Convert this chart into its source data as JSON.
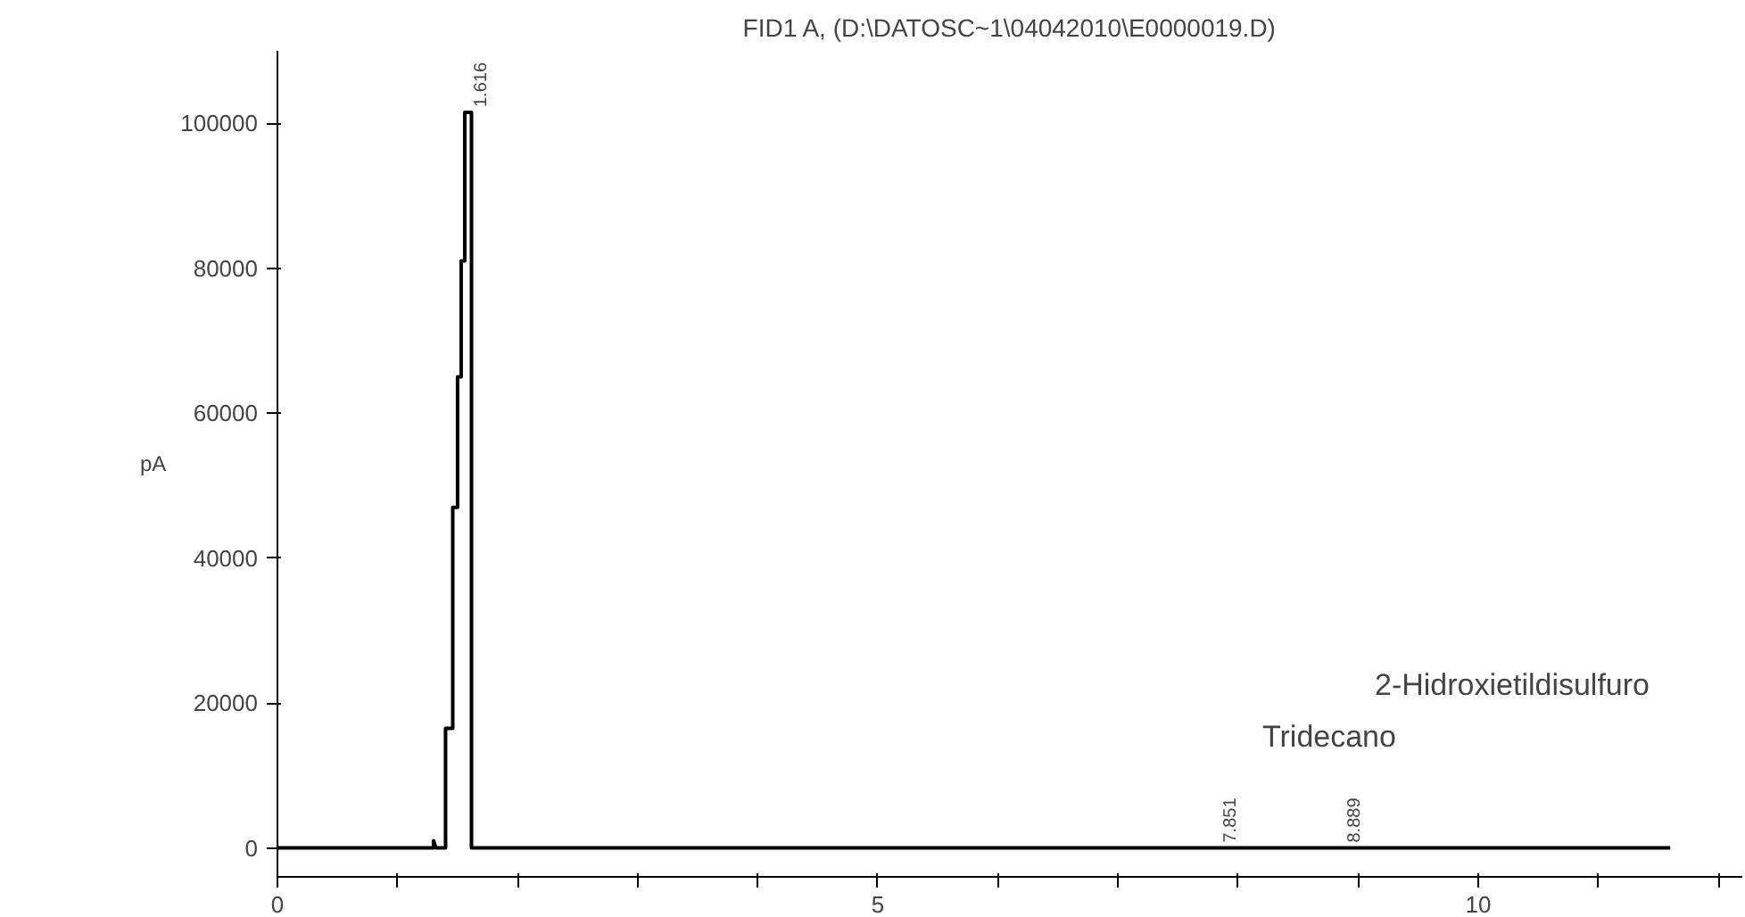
{
  "chart_data": {
    "type": "line",
    "title": "FID1 A, (D:\\DATOSC~1\\04042010\\E0000019.D)",
    "ylabel": "pA",
    "x": [
      0,
      1.3,
      1.3,
      1.32,
      1.4,
      1.4,
      1.46,
      1.46,
      1.5,
      1.5,
      1.53,
      1.53,
      1.56,
      1.56,
      1.616,
      1.616,
      7.851,
      8.889,
      11.6
    ],
    "series": [
      {
        "color": "#000000",
        "values": [
          0,
          0,
          1000,
          0,
          0,
          16500,
          16500,
          47000,
          47000,
          65000,
          65000,
          81000,
          81000,
          101500,
          101500,
          0,
          0,
          0,
          0
        ]
      }
    ],
    "annotations": [
      {
        "text": "1.616",
        "x": 1.616,
        "y": 101500
      },
      {
        "text": "7.851",
        "x": 7.851,
        "y": 0
      },
      {
        "text": "8.889",
        "x": 8.889,
        "y": 0
      },
      "2-Hidroxietildisulfuro",
      "Tridecano"
    ],
    "xlim": [
      0,
      12.2
    ],
    "ylim": [
      -4000,
      110000
    ],
    "xticks": [
      0,
      {
        "value": 1,
        "label": null
      },
      {
        "value": 2,
        "label": null
      },
      {
        "value": 3,
        "label": null
      },
      {
        "value": 4,
        "label": null
      },
      5,
      {
        "value": 6,
        "label": null
      },
      {
        "value": 7,
        "label": null
      },
      {
        "value": 8,
        "label": null
      },
      {
        "value": 9,
        "label": null
      },
      10,
      {
        "value": 11,
        "label": null
      },
      {
        "value": 12,
        "label": null
      }
    ],
    "yticks": [
      0,
      20000,
      40000,
      60000,
      80000,
      100000
    ],
    "grid": false,
    "marker": "none",
    "line_style": "solid"
  }
}
